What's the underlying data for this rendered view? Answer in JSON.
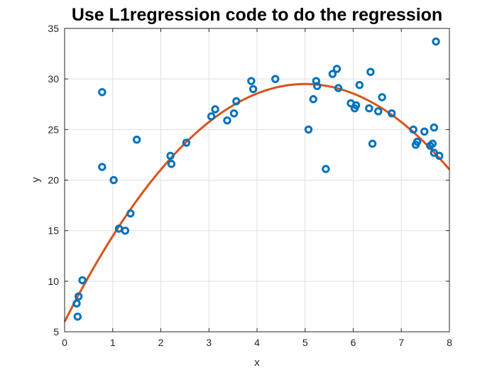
{
  "chart_data": {
    "type": "scatter",
    "title": "Use L1regression code to do the regression",
    "xlabel": "x",
    "ylabel": "y",
    "xlim": [
      0,
      8
    ],
    "ylim": [
      5,
      35
    ],
    "xticks": [
      0,
      1,
      2,
      3,
      4,
      5,
      6,
      7,
      8
    ],
    "yticks": [
      5,
      10,
      15,
      20,
      25,
      30,
      35
    ],
    "grid": true,
    "series": [
      {
        "kind": "points",
        "color": "#0072BD",
        "points": [
          [
            0.25,
            7.8
          ],
          [
            0.27,
            6.5
          ],
          [
            0.29,
            8.5
          ],
          [
            0.37,
            10.1
          ],
          [
            0.78,
            28.7
          ],
          [
            0.78,
            21.3
          ],
          [
            1.02,
            20.0
          ],
          [
            1.13,
            15.2
          ],
          [
            1.26,
            15.0
          ],
          [
            1.37,
            16.7
          ],
          [
            1.5,
            24.0
          ],
          [
            2.2,
            22.4
          ],
          [
            2.22,
            21.6
          ],
          [
            2.53,
            23.7
          ],
          [
            3.05,
            26.3
          ],
          [
            3.13,
            27.0
          ],
          [
            3.38,
            25.9
          ],
          [
            3.52,
            26.6
          ],
          [
            3.57,
            27.8
          ],
          [
            3.88,
            29.8
          ],
          [
            3.92,
            29.0
          ],
          [
            4.38,
            30.0
          ],
          [
            5.07,
            25.0
          ],
          [
            5.17,
            28.0
          ],
          [
            5.23,
            29.8
          ],
          [
            5.25,
            29.3
          ],
          [
            5.43,
            21.1
          ],
          [
            5.57,
            30.5
          ],
          [
            5.66,
            31.0
          ],
          [
            5.69,
            29.1
          ],
          [
            5.95,
            27.6
          ],
          [
            6.03,
            27.1
          ],
          [
            6.06,
            27.4
          ],
          [
            6.13,
            29.4
          ],
          [
            6.33,
            27.1
          ],
          [
            6.36,
            30.7
          ],
          [
            6.4,
            23.6
          ],
          [
            6.52,
            26.8
          ],
          [
            6.6,
            28.2
          ],
          [
            6.8,
            26.6
          ],
          [
            7.25,
            25.0
          ],
          [
            7.3,
            23.5
          ],
          [
            7.33,
            23.8
          ],
          [
            7.48,
            24.8
          ],
          [
            7.6,
            23.4
          ],
          [
            7.65,
            23.6
          ],
          [
            7.68,
            25.2
          ],
          [
            7.68,
            22.7
          ],
          [
            7.72,
            33.7
          ],
          [
            7.79,
            22.4
          ]
        ]
      },
      {
        "kind": "curve",
        "color": "#D95319",
        "model": "quadratic",
        "coefficients": [
          6.0,
          9.4,
          -0.94
        ]
      }
    ]
  }
}
